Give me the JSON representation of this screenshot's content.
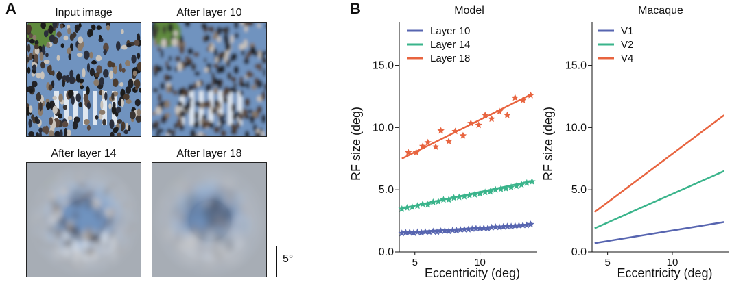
{
  "panel_a": {
    "letter": "A",
    "images": [
      {
        "title": "Input image",
        "blur": 0.2
      },
      {
        "title": "After layer 10",
        "blur": 2.5
      },
      {
        "title": "After layer 14",
        "blur": 5
      },
      {
        "title": "After layer 18",
        "blur": 7
      }
    ],
    "scale_label": "5°"
  },
  "panel_b": {
    "letter": "B"
  },
  "colors": {
    "blue": "#5765b0",
    "green": "#3ab48b",
    "red": "#e8643f"
  },
  "chart_data": [
    {
      "type": "scatter",
      "title": "Model",
      "xlabel": "Eccentricity (deg)",
      "ylabel": "RF size (deg)",
      "xlim": [
        3.8,
        14.4
      ],
      "ylim": [
        0,
        18.5
      ],
      "xticks": [
        5,
        10
      ],
      "xtick_labels": [
        "5",
        "10"
      ],
      "yticks": [
        0,
        5,
        10,
        15
      ],
      "ytick_labels": [
        "0.0",
        "5.0",
        "10.0",
        "15.0"
      ],
      "legend_position": "top-left",
      "series": [
        {
          "name": "Layer 10",
          "color": "#5765b0",
          "fit": [
            [
              4,
              1.55
            ],
            [
              14,
              2.2
            ]
          ],
          "points": [
            [
              4.0,
              1.5
            ],
            [
              4.3,
              1.55
            ],
            [
              4.6,
              1.58
            ],
            [
              4.9,
              1.52
            ],
            [
              5.2,
              1.6
            ],
            [
              5.5,
              1.55
            ],
            [
              5.8,
              1.62
            ],
            [
              6.1,
              1.6
            ],
            [
              6.4,
              1.65
            ],
            [
              6.7,
              1.6
            ],
            [
              7.0,
              1.68
            ],
            [
              7.3,
              1.7
            ],
            [
              7.6,
              1.66
            ],
            [
              7.9,
              1.75
            ],
            [
              8.2,
              1.72
            ],
            [
              8.5,
              1.78
            ],
            [
              8.8,
              1.8
            ],
            [
              9.1,
              1.8
            ],
            [
              9.4,
              1.85
            ],
            [
              9.7,
              1.88
            ],
            [
              10.0,
              1.9
            ],
            [
              10.3,
              1.92
            ],
            [
              10.6,
              1.9
            ],
            [
              10.9,
              1.97
            ],
            [
              11.2,
              2.0
            ],
            [
              11.5,
              1.98
            ],
            [
              11.8,
              2.02
            ],
            [
              12.1,
              2.05
            ],
            [
              12.4,
              2.05
            ],
            [
              12.7,
              2.1
            ],
            [
              13.0,
              2.12
            ],
            [
              13.3,
              2.15
            ],
            [
              13.6,
              2.15
            ],
            [
              13.9,
              2.22
            ]
          ]
        },
        {
          "name": "Layer 14",
          "color": "#3ab48b",
          "fit": [
            [
              4,
              3.5
            ],
            [
              14,
              5.7
            ]
          ],
          "points": [
            [
              4.0,
              3.45
            ],
            [
              4.4,
              3.55
            ],
            [
              4.8,
              3.6
            ],
            [
              5.2,
              3.7
            ],
            [
              5.6,
              3.85
            ],
            [
              6.0,
              3.8
            ],
            [
              6.4,
              4.0
            ],
            [
              6.8,
              4.05
            ],
            [
              7.2,
              4.2
            ],
            [
              7.6,
              4.2
            ],
            [
              8.0,
              4.35
            ],
            [
              8.4,
              4.4
            ],
            [
              8.8,
              4.45
            ],
            [
              9.2,
              4.55
            ],
            [
              9.6,
              4.6
            ],
            [
              10.0,
              4.7
            ],
            [
              10.4,
              4.8
            ],
            [
              10.8,
              4.85
            ],
            [
              11.2,
              5.0
            ],
            [
              11.6,
              5.05
            ],
            [
              12.0,
              5.1
            ],
            [
              12.4,
              5.2
            ],
            [
              12.8,
              5.3
            ],
            [
              13.2,
              5.4
            ],
            [
              13.6,
              5.55
            ],
            [
              14.0,
              5.65
            ]
          ]
        },
        {
          "name": "Layer 18",
          "color": "#e8643f",
          "fit": [
            [
              4,
              7.5
            ],
            [
              14,
              12.7
            ]
          ],
          "points": [
            [
              4.5,
              8.0
            ],
            [
              5.1,
              8.0
            ],
            [
              5.6,
              8.5
            ],
            [
              6.0,
              8.8
            ],
            [
              6.6,
              8.45
            ],
            [
              7.0,
              9.75
            ],
            [
              7.6,
              8.9
            ],
            [
              8.1,
              9.7
            ],
            [
              8.7,
              9.35
            ],
            [
              9.3,
              10.35
            ],
            [
              9.9,
              10.2
            ],
            [
              10.4,
              11.0
            ],
            [
              10.9,
              10.7
            ],
            [
              11.5,
              11.3
            ],
            [
              12.1,
              11.0
            ],
            [
              12.7,
              12.4
            ],
            [
              13.3,
              12.2
            ],
            [
              13.9,
              12.6
            ]
          ]
        }
      ]
    },
    {
      "type": "line",
      "title": "Macaque",
      "xlabel": "Eccentricity (deg)",
      "ylabel": "RF size (deg)",
      "xlim": [
        3.8,
        14.4
      ],
      "ylim": [
        0,
        18.5
      ],
      "xticks": [
        5,
        10
      ],
      "xtick_labels": [
        "5",
        "10"
      ],
      "yticks": [
        0,
        5,
        10,
        15
      ],
      "ytick_labels": [
        "0.0",
        "5.0",
        "10.0",
        "15.0"
      ],
      "legend_position": "top-left",
      "series": [
        {
          "name": "V1",
          "color": "#5765b0",
          "fit": [
            [
              4,
              0.7
            ],
            [
              14,
              2.4
            ]
          ]
        },
        {
          "name": "V2",
          "color": "#3ab48b",
          "fit": [
            [
              4,
              1.9
            ],
            [
              14,
              6.5
            ]
          ]
        },
        {
          "name": "V4",
          "color": "#e8643f",
          "fit": [
            [
              4,
              3.2
            ],
            [
              14,
              11.0
            ]
          ]
        }
      ]
    }
  ]
}
